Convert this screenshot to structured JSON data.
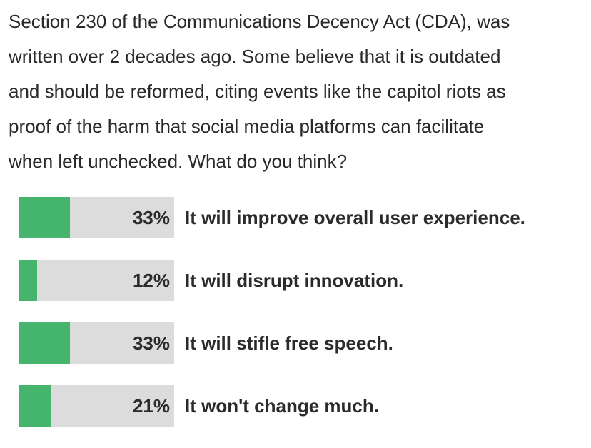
{
  "question_lines": [
    "Section 230 of the Communications Decency Act (CDA), was",
    "written over 2 decades ago. Some believe that it is outdated",
    "and should be reformed, citing events like the capitol riots as",
    "proof of the harm that social media platforms can facilitate",
    "when left unchecked. What do you think?"
  ],
  "options": [
    {
      "percent_label": "33%",
      "percent": 33,
      "label": "It will improve overall user experience."
    },
    {
      "percent_label": "12%",
      "percent": 12,
      "label": "It will disrupt innovation."
    },
    {
      "percent_label": "33%",
      "percent": 33,
      "label": "It will stifle free speech."
    },
    {
      "percent_label": "21%",
      "percent": 21,
      "label": "It won't change much."
    }
  ],
  "colors": {
    "bar_fill": "#45b46d",
    "bar_track": "#dcdcdc"
  }
}
